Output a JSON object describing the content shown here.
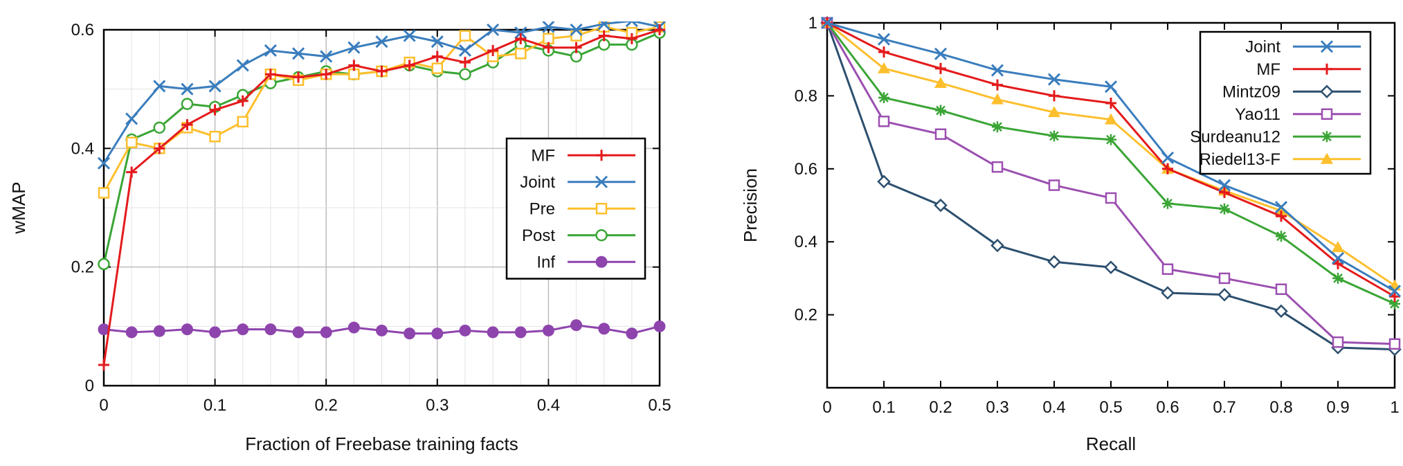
{
  "chart_data": [
    {
      "type": "line",
      "title": "",
      "xlabel": "Fraction of Freebase training facts",
      "ylabel": "wMAP",
      "xlim": [
        0,
        0.5
      ],
      "ylim": [
        0,
        0.6
      ],
      "xticks": [
        "0",
        "0.1",
        "0.2",
        "0.3",
        "0.4",
        "0.5"
      ],
      "yticks": [
        "0",
        "0.2",
        "0.4",
        "0.6"
      ],
      "grid": true,
      "legend_position": "center-right",
      "x": [
        0,
        0.025,
        0.05,
        0.075,
        0.1,
        0.125,
        0.15,
        0.175,
        0.2,
        0.225,
        0.25,
        0.275,
        0.3,
        0.325,
        0.35,
        0.375,
        0.4,
        0.425,
        0.45,
        0.475,
        0.5
      ],
      "series": [
        {
          "name": "MF",
          "color": "#e41a1c",
          "marker": "plus",
          "values": [
            0.035,
            0.36,
            0.4,
            0.44,
            0.465,
            0.48,
            0.525,
            0.52,
            0.525,
            0.54,
            0.53,
            0.54,
            0.555,
            0.545,
            0.565,
            0.585,
            0.57,
            0.57,
            0.59,
            0.585,
            0.6
          ]
        },
        {
          "name": "Joint",
          "color": "#3a7dbd",
          "marker": "cross",
          "values": [
            0.375,
            0.45,
            0.505,
            0.5,
            0.505,
            0.54,
            0.565,
            0.56,
            0.555,
            0.57,
            0.58,
            0.59,
            0.58,
            0.565,
            0.6,
            0.595,
            0.605,
            0.6,
            0.61,
            0.615,
            0.605
          ]
        },
        {
          "name": "Pre",
          "color": "#fdbf2d",
          "marker": "square",
          "values": [
            0.325,
            0.41,
            0.4,
            0.435,
            0.42,
            0.445,
            0.525,
            0.515,
            0.525,
            0.525,
            0.53,
            0.545,
            0.535,
            0.59,
            0.555,
            0.56,
            0.585,
            0.59,
            0.605,
            0.595,
            0.605
          ]
        },
        {
          "name": "Post",
          "color": "#3aa535",
          "marker": "circle",
          "values": [
            0.205,
            0.415,
            0.435,
            0.475,
            0.47,
            0.49,
            0.51,
            0.52,
            0.53,
            0.525,
            0.53,
            0.54,
            0.53,
            0.525,
            0.545,
            0.575,
            0.565,
            0.555,
            0.575,
            0.575,
            0.595
          ]
        },
        {
          "name": "Inf",
          "color": "#8e44ad",
          "marker": "filled-circle",
          "values": [
            0.095,
            0.09,
            0.092,
            0.095,
            0.09,
            0.095,
            0.095,
            0.09,
            0.09,
            0.098,
            0.093,
            0.088,
            0.088,
            0.093,
            0.09,
            0.09,
            0.093,
            0.102,
            0.096,
            0.088,
            0.1
          ]
        }
      ]
    },
    {
      "type": "line",
      "title": "",
      "xlabel": "Recall",
      "ylabel": "Precision",
      "xlim": [
        0,
        1
      ],
      "ylim": [
        0,
        1
      ],
      "xticks": [
        "0",
        "0.1",
        "0.2",
        "0.3",
        "0.4",
        "0.5",
        "0.6",
        "0.7",
        "0.8",
        "0.9",
        "1"
      ],
      "yticks": [
        "0.2",
        "0.4",
        "0.6",
        "0.8",
        "1"
      ],
      "grid": false,
      "legend_position": "top-right",
      "x": [
        0,
        0.1,
        0.2,
        0.3,
        0.4,
        0.5,
        0.6,
        0.7,
        0.8,
        0.9,
        1.0
      ],
      "series": [
        {
          "name": "Joint",
          "color": "#3a7dbd",
          "marker": "cross",
          "values": [
            1.0,
            0.955,
            0.915,
            0.87,
            0.845,
            0.825,
            0.63,
            0.555,
            0.495,
            0.355,
            0.265
          ]
        },
        {
          "name": "MF",
          "color": "#e41a1c",
          "marker": "plus",
          "values": [
            1.0,
            0.92,
            0.875,
            0.83,
            0.8,
            0.78,
            0.6,
            0.535,
            0.47,
            0.34,
            0.25
          ]
        },
        {
          "name": "Mintz09",
          "color": "#2c4f6e",
          "marker": "diamond",
          "values": [
            1.0,
            0.565,
            0.5,
            0.39,
            0.345,
            0.33,
            0.26,
            0.255,
            0.21,
            0.11,
            0.105
          ]
        },
        {
          "name": "Yao11",
          "color": "#9b4fb0",
          "marker": "square",
          "values": [
            1.0,
            0.73,
            0.695,
            0.605,
            0.555,
            0.52,
            0.325,
            0.3,
            0.27,
            0.125,
            0.12
          ]
        },
        {
          "name": "Surdeanu12",
          "color": "#3aa535",
          "marker": "star",
          "values": [
            1.0,
            0.795,
            0.76,
            0.715,
            0.69,
            0.68,
            0.505,
            0.49,
            0.415,
            0.3,
            0.23
          ]
        },
        {
          "name": "Riedel13-F",
          "color": "#fdbf2d",
          "marker": "triangle",
          "values": [
            1.0,
            0.875,
            0.835,
            0.79,
            0.755,
            0.735,
            0.6,
            0.54,
            0.485,
            0.385,
            0.28
          ]
        }
      ]
    }
  ]
}
